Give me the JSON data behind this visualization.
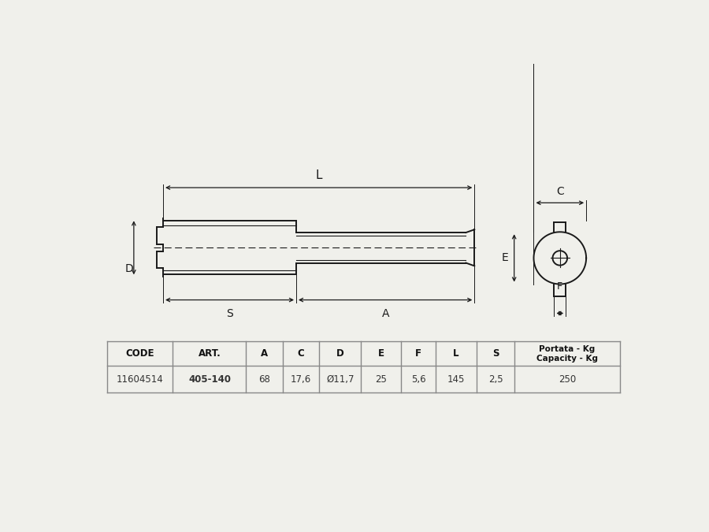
{
  "bg_color": "#f0f0eb",
  "line_color": "#1a1a1a",
  "headers": [
    "CODE",
    "ART.",
    "A",
    "C",
    "D",
    "E",
    "F",
    "L",
    "S",
    "Portata - Kg\nCapacity - Kg"
  ],
  "row": [
    "11604514",
    "405-140",
    "68",
    "17,6",
    "Ø11,7",
    "25",
    "5,6",
    "145",
    "2,5",
    "250"
  ],
  "col_widths": [
    1.08,
    1.2,
    0.6,
    0.6,
    0.68,
    0.66,
    0.56,
    0.68,
    0.62,
    2.22
  ]
}
